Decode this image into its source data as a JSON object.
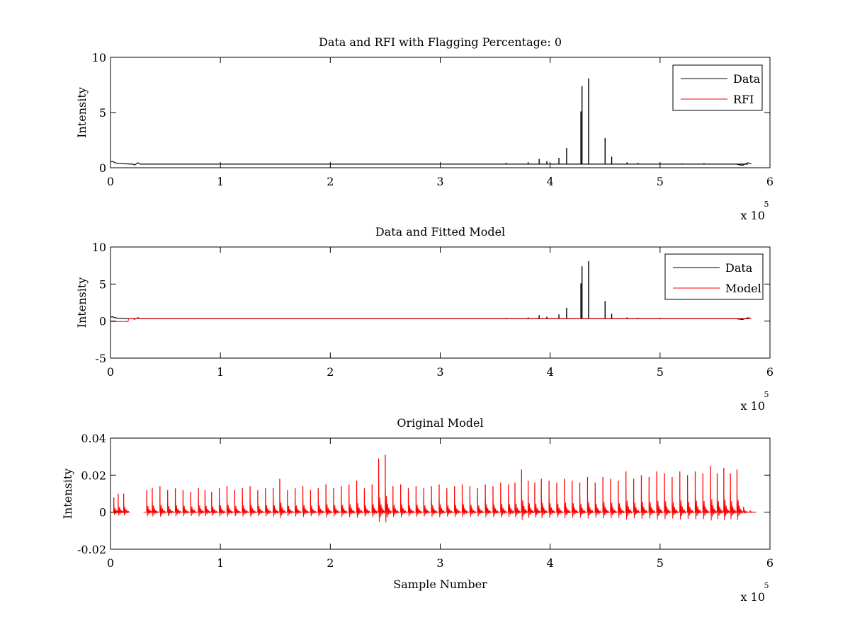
{
  "chart_data": [
    {
      "type": "line",
      "title": "Data and RFI with Flagging Percentage: 0",
      "xlabel": "",
      "ylabel": "Intensity",
      "xlim": [
        0,
        600000
      ],
      "ylim": [
        0,
        10
      ],
      "x_ticks": [
        0,
        1,
        2,
        3,
        4,
        5,
        6
      ],
      "y_ticks": [
        0,
        5,
        10
      ],
      "x_multiplier": {
        "base": "x 10",
        "exponent": "5"
      },
      "legend_position": "top-right",
      "grid": false,
      "colors": {
        "Data": "#000000",
        "RFI": "#ff0000"
      },
      "series": [
        {
          "name": "Data",
          "baseline": 0.33,
          "segments": [
            {
              "x": [
                0,
                2000,
                4000,
                8000
              ],
              "y": [
                0.55,
                0.58,
                0.45,
                0.38
              ]
            },
            {
              "x": [
                8000,
                20000,
                22000,
                25000,
                27000
              ],
              "y": [
                0.38,
                0.33,
                0.25,
                0.45,
                0.33
              ]
            },
            {
              "x": [
                27000,
                580000
              ],
              "y": [
                0.33,
                0.33
              ]
            },
            {
              "x": [
                570000,
                575000,
                580000,
                583000
              ],
              "y": [
                0.3,
                0.22,
                0.45,
                0.35
              ]
            }
          ],
          "spikes": [
            {
              "x": 360000,
              "y": 0.45
            },
            {
              "x": 380000,
              "y": 0.5
            },
            {
              "x": 390000,
              "y": 0.8
            },
            {
              "x": 397000,
              "y": 0.6
            },
            {
              "x": 408000,
              "y": 0.9
            },
            {
              "x": 415000,
              "y": 1.8
            },
            {
              "x": 428000,
              "y": 5.1
            },
            {
              "x": 429000,
              "y": 7.4
            },
            {
              "x": 435000,
              "y": 8.1
            },
            {
              "x": 450000,
              "y": 2.7
            },
            {
              "x": 456000,
              "y": 1.0
            },
            {
              "x": 470000,
              "y": 0.5
            },
            {
              "x": 480000,
              "y": 0.45
            },
            {
              "x": 500000,
              "y": 0.45
            },
            {
              "x": 520000,
              "y": 0.4
            },
            {
              "x": 540000,
              "y": 0.42
            }
          ]
        },
        {
          "name": "RFI",
          "values": "none"
        }
      ]
    },
    {
      "type": "line",
      "title": "Data and Fitted Model",
      "xlabel": "",
      "ylabel": "Intensity",
      "xlim": [
        0,
        600000
      ],
      "ylim": [
        -5,
        10
      ],
      "x_ticks": [
        0,
        1,
        2,
        3,
        4,
        5,
        6
      ],
      "y_ticks": [
        -5,
        0,
        5,
        10
      ],
      "x_multiplier": {
        "base": "x 10",
        "exponent": "5"
      },
      "legend_position": "top-right",
      "grid": false,
      "colors": {
        "Data": "#000000",
        "Model": "#ff0000"
      },
      "series": [
        {
          "name": "Data",
          "baseline": 0.33,
          "segments": [
            {
              "x": [
                0,
                2000,
                4000,
                8000
              ],
              "y": [
                0.55,
                0.58,
                0.45,
                0.38
              ]
            },
            {
              "x": [
                8000,
                20000,
                22000,
                25000,
                27000
              ],
              "y": [
                0.38,
                0.33,
                0.25,
                0.45,
                0.33
              ]
            },
            {
              "x": [
                27000,
                580000
              ],
              "y": [
                0.33,
                0.33
              ]
            },
            {
              "x": [
                570000,
                575000,
                580000,
                583000
              ],
              "y": [
                0.3,
                0.22,
                0.45,
                0.35
              ]
            }
          ],
          "spikes": [
            {
              "x": 360000,
              "y": 0.45
            },
            {
              "x": 380000,
              "y": 0.5
            },
            {
              "x": 390000,
              "y": 0.8
            },
            {
              "x": 397000,
              "y": 0.6
            },
            {
              "x": 408000,
              "y": 0.9
            },
            {
              "x": 415000,
              "y": 1.8
            },
            {
              "x": 428000,
              "y": 5.1
            },
            {
              "x": 429000,
              "y": 7.4
            },
            {
              "x": 435000,
              "y": 8.1
            },
            {
              "x": 450000,
              "y": 2.7
            },
            {
              "x": 456000,
              "y": 1.0
            },
            {
              "x": 470000,
              "y": 0.5
            },
            {
              "x": 480000,
              "y": 0.45
            },
            {
              "x": 500000,
              "y": 0.45
            },
            {
              "x": 520000,
              "y": 0.4
            },
            {
              "x": 540000,
              "y": 0.42
            }
          ]
        },
        {
          "name": "Model",
          "x": [
            0,
            1000,
            16000,
            16500,
            25000,
            583000
          ],
          "y": [
            0.05,
            -0.05,
            -0.05,
            0.33,
            0.35,
            0.35
          ]
        }
      ]
    },
    {
      "type": "line",
      "title": "Original Model",
      "xlabel": "Sample Number",
      "ylabel": "Intensity",
      "xlim": [
        0,
        600000
      ],
      "ylim": [
        -0.02,
        0.04
      ],
      "x_ticks": [
        0,
        1,
        2,
        3,
        4,
        5,
        6
      ],
      "y_ticks": [
        -0.02,
        0,
        0.02,
        0.04
      ],
      "x_multiplier": {
        "base": "x 10",
        "exponent": "5"
      },
      "grid": false,
      "colors": {
        "model": "#ff0000"
      },
      "series": [
        {
          "baseline": 0.0,
          "gaps": [
            [
              13000,
              30000
            ]
          ],
          "end": 583000,
          "spikes": [
            {
              "x": 3000,
              "y": 0.008
            },
            {
              "x": 7000,
              "y": 0.01
            },
            {
              "x": 12000,
              "y": 0.01
            },
            {
              "x": 33000,
              "y": 0.012
            },
            {
              "x": 38000,
              "y": 0.013
            },
            {
              "x": 45000,
              "y": 0.014
            },
            {
              "x": 52000,
              "y": 0.012
            },
            {
              "x": 59000,
              "y": 0.013
            },
            {
              "x": 66000,
              "y": 0.012
            },
            {
              "x": 73000,
              "y": 0.011
            },
            {
              "x": 80000,
              "y": 0.013
            },
            {
              "x": 86000,
              "y": 0.012
            },
            {
              "x": 92000,
              "y": 0.011
            },
            {
              "x": 99000,
              "y": 0.013
            },
            {
              "x": 106000,
              "y": 0.014
            },
            {
              "x": 113000,
              "y": 0.012
            },
            {
              "x": 120000,
              "y": 0.013
            },
            {
              "x": 127000,
              "y": 0.014
            },
            {
              "x": 134000,
              "y": 0.012
            },
            {
              "x": 141000,
              "y": 0.013
            },
            {
              "x": 148000,
              "y": 0.013
            },
            {
              "x": 154000,
              "y": 0.018
            },
            {
              "x": 161000,
              "y": 0.012
            },
            {
              "x": 168000,
              "y": 0.013
            },
            {
              "x": 175000,
              "y": 0.014
            },
            {
              "x": 182000,
              "y": 0.012
            },
            {
              "x": 189000,
              "y": 0.013
            },
            {
              "x": 196000,
              "y": 0.015
            },
            {
              "x": 203000,
              "y": 0.013
            },
            {
              "x": 210000,
              "y": 0.014
            },
            {
              "x": 217000,
              "y": 0.015
            },
            {
              "x": 224000,
              "y": 0.017
            },
            {
              "x": 231000,
              "y": 0.013
            },
            {
              "x": 238000,
              "y": 0.015
            },
            {
              "x": 244000,
              "y": 0.029
            },
            {
              "x": 250000,
              "y": 0.031
            },
            {
              "x": 257000,
              "y": 0.014
            },
            {
              "x": 264000,
              "y": 0.015
            },
            {
              "x": 271000,
              "y": 0.013
            },
            {
              "x": 278000,
              "y": 0.014
            },
            {
              "x": 285000,
              "y": 0.013
            },
            {
              "x": 292000,
              "y": 0.014
            },
            {
              "x": 299000,
              "y": 0.015
            },
            {
              "x": 306000,
              "y": 0.013
            },
            {
              "x": 313000,
              "y": 0.014
            },
            {
              "x": 320000,
              "y": 0.015
            },
            {
              "x": 327000,
              "y": 0.014
            },
            {
              "x": 334000,
              "y": 0.013
            },
            {
              "x": 341000,
              "y": 0.015
            },
            {
              "x": 348000,
              "y": 0.014
            },
            {
              "x": 355000,
              "y": 0.016
            },
            {
              "x": 362000,
              "y": 0.015
            },
            {
              "x": 368000,
              "y": 0.016
            },
            {
              "x": 374000,
              "y": 0.023
            },
            {
              "x": 380000,
              "y": 0.017
            },
            {
              "x": 386000,
              "y": 0.016
            },
            {
              "x": 392000,
              "y": 0.018
            },
            {
              "x": 399000,
              "y": 0.017
            },
            {
              "x": 406000,
              "y": 0.016
            },
            {
              "x": 413000,
              "y": 0.018
            },
            {
              "x": 420000,
              "y": 0.017
            },
            {
              "x": 427000,
              "y": 0.016
            },
            {
              "x": 434000,
              "y": 0.019
            },
            {
              "x": 441000,
              "y": 0.016
            },
            {
              "x": 448000,
              "y": 0.019
            },
            {
              "x": 455000,
              "y": 0.018
            },
            {
              "x": 462000,
              "y": 0.017
            },
            {
              "x": 469000,
              "y": 0.022
            },
            {
              "x": 476000,
              "y": 0.018
            },
            {
              "x": 483000,
              "y": 0.02
            },
            {
              "x": 490000,
              "y": 0.019
            },
            {
              "x": 497000,
              "y": 0.022
            },
            {
              "x": 504000,
              "y": 0.021
            },
            {
              "x": 511000,
              "y": 0.019
            },
            {
              "x": 518000,
              "y": 0.022
            },
            {
              "x": 525000,
              "y": 0.02
            },
            {
              "x": 532000,
              "y": 0.022
            },
            {
              "x": 539000,
              "y": 0.021
            },
            {
              "x": 546000,
              "y": 0.025
            },
            {
              "x": 552000,
              "y": 0.021
            },
            {
              "x": 558000,
              "y": 0.024
            },
            {
              "x": 564000,
              "y": 0.021
            },
            {
              "x": 570000,
              "y": 0.023
            },
            {
              "x": 576000,
              "y": 0.003
            },
            {
              "x": 582000,
              "y": 0.001
            }
          ]
        }
      ]
    }
  ]
}
